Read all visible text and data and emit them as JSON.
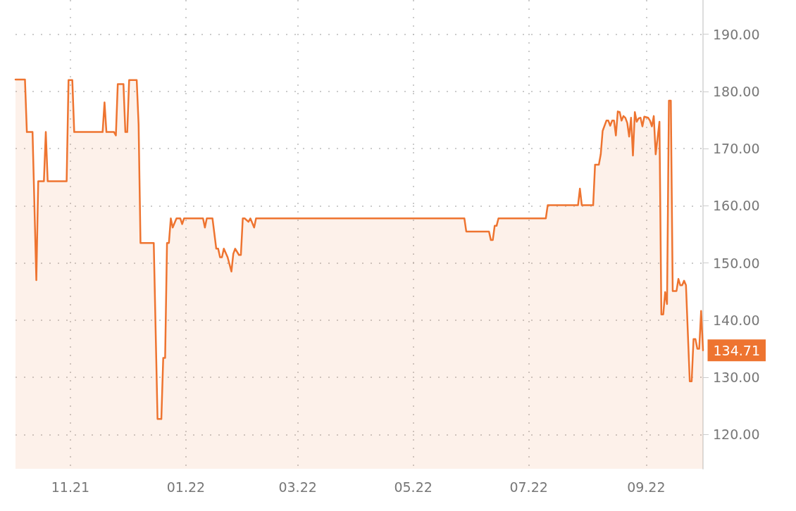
{
  "chart_data": {
    "type": "area",
    "color": "#ee7430",
    "grid": true,
    "marker": "none",
    "line_style": "solid",
    "annotations": [
      {
        "text": "134.71",
        "x": "2022-10-01",
        "y": 134.71
      }
    ],
    "xlim": [
      "2021-10-03",
      "2022-10-01"
    ],
    "xticks": [
      {
        "value": "2021-11-01",
        "label": "11.21"
      },
      {
        "value": "2022-01-01",
        "label": "01.22"
      },
      {
        "value": "2022-03-01",
        "label": "03.22"
      },
      {
        "value": "2022-05-01",
        "label": "05.22"
      },
      {
        "value": "2022-07-01",
        "label": "07.22"
      },
      {
        "value": "2022-09-01",
        "label": "09.22"
      }
    ],
    "ylim": [
      114,
      196
    ],
    "yticks": [
      {
        "value": 120,
        "label": "120.00"
      },
      {
        "value": 130,
        "label": "130.00"
      },
      {
        "value": 140,
        "label": "140.00"
      },
      {
        "value": 150,
        "label": "150.00"
      },
      {
        "value": 160,
        "label": "160.00"
      },
      {
        "value": 170,
        "label": "170.00"
      },
      {
        "value": 180,
        "label": "180.00"
      },
      {
        "value": 190,
        "label": "190.00"
      }
    ],
    "x": [
      "2021-10-03",
      "2021-10-08",
      "2021-10-09",
      "2021-10-12",
      "2021-10-14",
      "2021-10-15",
      "2021-10-18",
      "2021-10-19",
      "2021-10-20",
      "2021-10-30",
      "2021-10-31",
      "2021-11-02",
      "2021-11-03",
      "2021-11-18",
      "2021-11-19",
      "2021-11-20",
      "2021-11-24",
      "2021-11-25",
      "2021-11-26",
      "2021-11-29",
      "2021-11-30",
      "2021-12-01",
      "2021-12-02",
      "2021-12-06",
      "2021-12-07",
      "2021-12-08",
      "2021-12-15",
      "2021-12-17",
      "2021-12-19",
      "2021-12-20",
      "2021-12-21",
      "2021-12-22",
      "2021-12-23",
      "2021-12-24",
      "2021-12-25",
      "2021-12-27",
      "2021-12-29",
      "2021-12-30",
      "2021-12-31",
      "2022-01-10",
      "2022-01-11",
      "2022-01-12",
      "2022-01-15",
      "2022-01-17",
      "2022-01-18",
      "2022-01-19",
      "2022-01-20",
      "2022-01-21",
      "2022-01-23",
      "2022-01-25",
      "2022-01-26",
      "2022-01-27",
      "2022-01-29",
      "2022-01-30",
      "2022-01-31",
      "2022-02-01",
      "2022-02-03",
      "2022-02-04",
      "2022-02-06",
      "2022-02-07",
      "2022-05-28",
      "2022-05-29",
      "2022-06-10",
      "2022-06-11",
      "2022-06-12",
      "2022-06-13",
      "2022-06-14",
      "2022-06-15",
      "2022-07-10",
      "2022-07-11",
      "2022-07-27",
      "2022-07-28",
      "2022-07-29",
      "2022-08-04",
      "2022-08-05",
      "2022-08-07",
      "2022-08-08",
      "2022-08-09",
      "2022-08-11",
      "2022-08-12",
      "2022-08-13",
      "2022-08-14",
      "2022-08-15",
      "2022-08-16",
      "2022-08-17",
      "2022-08-18",
      "2022-08-19",
      "2022-08-20",
      "2022-08-21",
      "2022-08-22",
      "2022-08-23",
      "2022-08-24",
      "2022-08-25",
      "2022-08-26",
      "2022-08-27",
      "2022-08-28",
      "2022-08-29",
      "2022-08-30",
      "2022-08-31",
      "2022-09-02",
      "2022-09-03",
      "2022-09-04",
      "2022-09-05",
      "2022-09-06",
      "2022-09-08",
      "2022-09-09",
      "2022-09-10",
      "2022-09-11",
      "2022-09-12",
      "2022-09-13",
      "2022-09-14",
      "2022-09-15",
      "2022-09-17",
      "2022-09-18",
      "2022-09-19",
      "2022-09-20",
      "2022-09-21",
      "2022-09-22",
      "2022-09-24",
      "2022-09-25",
      "2022-09-26",
      "2022-09-27",
      "2022-09-28",
      "2022-09-29",
      "2022-09-30",
      "2022-10-01"
    ],
    "values": [
      182.1,
      182.1,
      172.9,
      172.9,
      147.0,
      164.3,
      164.3,
      172.9,
      164.3,
      164.3,
      182.0,
      182.0,
      172.9,
      172.9,
      178.1,
      172.9,
      172.9,
      172.3,
      181.3,
      181.3,
      172.9,
      172.9,
      182.0,
      182.0,
      174.2,
      153.5,
      153.5,
      122.7,
      122.7,
      133.4,
      133.4,
      153.5,
      153.5,
      157.8,
      156.2,
      157.8,
      157.8,
      156.8,
      157.8,
      157.8,
      156.2,
      157.8,
      157.8,
      152.5,
      152.5,
      151.0,
      151.0,
      152.5,
      151.0,
      148.5,
      151.6,
      152.5,
      151.4,
      151.4,
      157.8,
      157.8,
      157.2,
      157.8,
      156.2,
      157.8,
      157.8,
      155.5,
      155.5,
      154.0,
      154.0,
      156.5,
      156.5,
      157.8,
      157.8,
      160.1,
      160.1,
      163.0,
      160.1,
      160.1,
      167.2,
      167.2,
      169.0,
      173.1,
      174.9,
      174.9,
      174.0,
      174.9,
      174.9,
      172.3,
      176.5,
      176.4,
      174.9,
      175.7,
      175.4,
      174.5,
      172.1,
      175.4,
      168.8,
      176.4,
      174.7,
      175.3,
      175.4,
      173.9,
      175.6,
      175.4,
      174.9,
      173.9,
      175.7,
      169.0,
      174.7,
      141.0,
      141.0,
      144.9,
      142.8,
      178.4,
      178.4,
      145.1,
      145.1,
      147.2,
      146.1,
      146.1,
      146.9,
      146.1,
      129.3,
      129.3,
      136.7,
      136.7,
      135.0,
      135.0,
      141.6,
      134.71
    ]
  }
}
